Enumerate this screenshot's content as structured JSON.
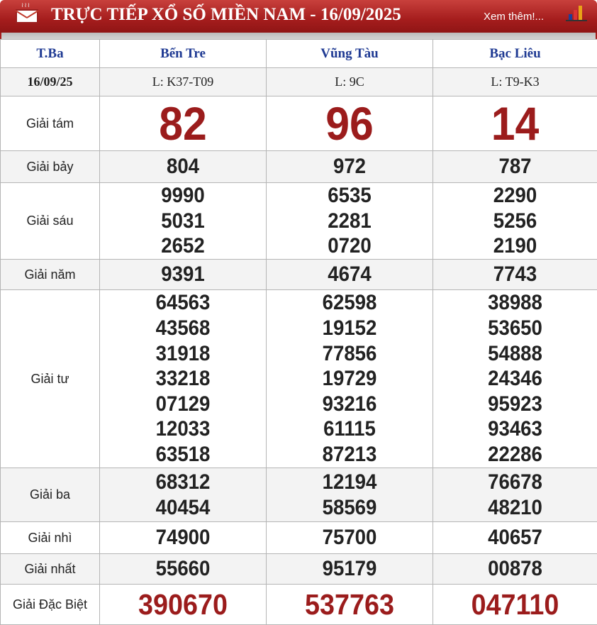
{
  "header": {
    "title": "TRỰC TIẾP XỔ SỐ MIỀN NAM - 16/09/2025",
    "more_link": "Xem thêm!...",
    "icons": [
      "mail-icon",
      "bar-chart-icon"
    ],
    "accent": "#a51d1d"
  },
  "table": {
    "day": "T.Ba",
    "date": "16/09/25",
    "provinces": [
      {
        "name": "Bến Tre",
        "ticket": "L: K37-T09"
      },
      {
        "name": "Vũng Tàu",
        "ticket": "L: 9C"
      },
      {
        "name": "Bạc Liêu",
        "ticket": "L: T9-K3"
      }
    ],
    "prizes": [
      {
        "label": "Giải tám",
        "style": "big",
        "results": [
          [
            "82"
          ],
          [
            "96"
          ],
          [
            "14"
          ]
        ]
      },
      {
        "label": "Giải bảy",
        "results": [
          [
            "804"
          ],
          [
            "972"
          ],
          [
            "787"
          ]
        ]
      },
      {
        "label": "Giải sáu",
        "results": [
          [
            "9990",
            "5031",
            "2652"
          ],
          [
            "6535",
            "2281",
            "0720"
          ],
          [
            "2290",
            "5256",
            "2190"
          ]
        ]
      },
      {
        "label": "Giải năm",
        "results": [
          [
            "9391"
          ],
          [
            "4674"
          ],
          [
            "7743"
          ]
        ]
      },
      {
        "label": "Giải tư",
        "results": [
          [
            "64563",
            "43568",
            "31918",
            "33218",
            "07129",
            "12033",
            "63518"
          ],
          [
            "62598",
            "19152",
            "77856",
            "19729",
            "93216",
            "61115",
            "87213"
          ],
          [
            "38988",
            "53650",
            "54888",
            "24346",
            "95923",
            "93463",
            "22286"
          ]
        ]
      },
      {
        "label": "Giải ba",
        "results": [
          [
            "68312",
            "40454"
          ],
          [
            "12194",
            "58569"
          ],
          [
            "76678",
            "48210"
          ]
        ]
      },
      {
        "label": "Giải nhì",
        "results": [
          [
            "74900"
          ],
          [
            "75700"
          ],
          [
            "40657"
          ]
        ]
      },
      {
        "label": "Giải nhất",
        "results": [
          [
            "55660"
          ],
          [
            "95179"
          ],
          [
            "00878"
          ]
        ]
      },
      {
        "label": "Giải Đặc Biệt",
        "style": "special",
        "results": [
          [
            "390670"
          ],
          [
            "537763"
          ],
          [
            "047110"
          ]
        ]
      }
    ]
  }
}
